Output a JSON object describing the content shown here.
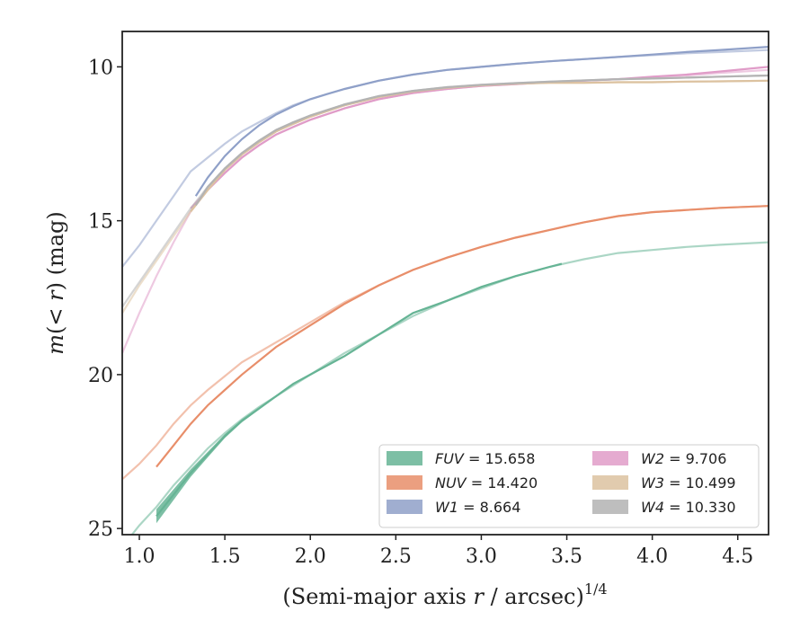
{
  "chart_data": {
    "type": "line",
    "title": "",
    "xlabel": "(Semi-major axis r / arcsec)^1/4",
    "xlabel_parts": {
      "prefix": "(Semi-major axis ",
      "var": "r",
      "middle": " / arcsec)",
      "sup": "1/4"
    },
    "ylabel": "m(< r) (mag)",
    "ylabel_parts": {
      "m": "m",
      "paren_open": "(",
      "lt": "< ",
      "r": "r",
      "paren_close": ")",
      "unit": " (mag)"
    },
    "xlim": [
      0.9,
      4.68
    ],
    "ylim": [
      25.2,
      8.85
    ],
    "y_inverted": true,
    "xticks": [
      1.0,
      1.5,
      2.0,
      2.5,
      3.0,
      3.5,
      4.0,
      4.5
    ],
    "xtick_labels": [
      "1.0",
      "1.5",
      "2.0",
      "2.5",
      "3.0",
      "3.5",
      "4.0",
      "4.5"
    ],
    "yticks": [
      10,
      15,
      20,
      25
    ],
    "ytick_labels": [
      "10",
      "15",
      "20",
      "25"
    ],
    "grid": false,
    "legend_position": "lower-right",
    "legend_columns": 2,
    "series": [
      {
        "name": "FUV = 15.658",
        "label_var": "FUV",
        "label_value": "= 15.658",
        "color": "#66b495",
        "x": [
          1.1,
          1.2,
          1.3,
          1.4,
          1.5,
          1.6,
          1.7,
          1.8,
          1.9,
          2.0,
          2.2,
          2.4,
          2.6,
          2.8,
          3.0,
          3.2,
          3.4,
          3.47
        ],
        "y": [
          24.6,
          23.9,
          23.2,
          22.6,
          22.0,
          21.5,
          21.1,
          20.7,
          20.3,
          20.0,
          19.4,
          18.7,
          18.0,
          17.6,
          17.15,
          16.8,
          16.5,
          16.4
        ],
        "band": [
          0.45,
          0.35,
          0.25,
          0.18,
          0.12,
          0.1,
          0.08,
          0.07,
          0.06,
          0.05,
          0.05,
          0.05,
          0.05,
          0.05,
          0.05,
          0.05,
          0.05,
          0.05
        ],
        "ext_x": [
          0.9,
          1.0,
          1.1,
          1.2,
          1.3,
          1.4,
          1.5,
          1.6,
          1.7,
          1.8,
          2.0,
          2.2,
          2.4,
          2.6,
          2.8,
          3.0,
          3.2,
          3.4,
          3.6,
          3.8,
          4.0,
          4.2,
          4.4,
          4.68
        ],
        "ext_y": [
          25.6,
          24.9,
          24.3,
          23.6,
          23.0,
          22.4,
          21.9,
          21.45,
          21.05,
          20.7,
          20.0,
          19.3,
          18.7,
          18.1,
          17.6,
          17.2,
          16.8,
          16.5,
          16.25,
          16.05,
          15.95,
          15.85,
          15.78,
          15.7
        ]
      },
      {
        "name": "NUV = 14.420",
        "label_var": "NUV",
        "label_value": "= 14.420",
        "color": "#e88e6a",
        "x": [
          1.1,
          1.2,
          1.3,
          1.4,
          1.5,
          1.6,
          1.8,
          2.0,
          2.2,
          2.4,
          2.6,
          2.8,
          3.0,
          3.2,
          3.4,
          3.6,
          3.8,
          4.0,
          4.2,
          4.4,
          4.68
        ],
        "y": [
          23.0,
          22.3,
          21.6,
          21.0,
          20.5,
          20.0,
          19.1,
          18.4,
          17.7,
          17.1,
          16.6,
          16.2,
          15.85,
          15.55,
          15.3,
          15.05,
          14.85,
          14.72,
          14.65,
          14.58,
          14.52
        ],
        "ext_x": [
          0.9,
          1.0,
          1.1,
          1.2,
          1.3,
          1.4,
          1.5,
          1.6,
          1.8,
          2.0,
          2.2,
          2.4,
          2.6,
          2.8,
          3.0,
          3.2,
          3.4,
          3.6,
          3.8,
          4.0,
          4.2,
          4.4,
          4.68
        ],
        "ext_y": [
          23.4,
          22.9,
          22.3,
          21.6,
          21.0,
          20.5,
          20.05,
          19.6,
          18.95,
          18.3,
          17.65,
          17.1,
          16.6,
          16.2,
          15.85,
          15.55,
          15.3,
          15.05,
          14.85,
          14.72,
          14.65,
          14.58,
          14.52
        ]
      },
      {
        "name": "W1 = 8.664",
        "label_var": "W1",
        "label_value": "= 8.664",
        "color": "#8fa0c8",
        "x": [
          1.33,
          1.4,
          1.5,
          1.6,
          1.7,
          1.8,
          1.9,
          2.0,
          2.1,
          2.2,
          2.4,
          2.6,
          2.8,
          3.0,
          3.2,
          3.4,
          3.6,
          3.8,
          4.0,
          4.2,
          4.4,
          4.68
        ],
        "y": [
          14.2,
          13.6,
          12.9,
          12.35,
          11.9,
          11.55,
          11.28,
          11.05,
          10.88,
          10.72,
          10.45,
          10.25,
          10.1,
          10.0,
          9.9,
          9.82,
          9.75,
          9.68,
          9.6,
          9.52,
          9.45,
          9.35
        ],
        "ext_x": [
          0.9,
          1.0,
          1.1,
          1.2,
          1.3,
          1.4,
          1.5,
          1.6,
          1.7,
          1.8,
          1.9,
          2.0,
          2.2,
          2.4,
          2.6,
          2.8,
          3.0,
          3.2,
          3.4,
          3.6,
          3.8,
          4.0,
          4.2,
          4.4,
          4.68
        ],
        "ext_y": [
          16.5,
          15.8,
          15.0,
          14.2,
          13.4,
          12.95,
          12.5,
          12.1,
          11.8,
          11.5,
          11.25,
          11.05,
          10.72,
          10.45,
          10.25,
          10.1,
          10.0,
          9.9,
          9.82,
          9.75,
          9.68,
          9.62,
          9.56,
          9.52,
          9.45
        ]
      },
      {
        "name": "W2 = 9.706",
        "label_var": "W2",
        "label_value": "= 9.706",
        "color": "#e09cc8",
        "x": [
          1.3,
          1.35,
          1.4,
          1.5,
          1.6,
          1.7,
          1.8,
          1.9,
          2.0,
          2.2,
          2.4,
          2.6,
          2.8,
          3.0,
          3.2,
          3.4,
          3.6,
          3.8,
          4.0,
          4.2,
          4.4,
          4.68
        ],
        "y": [
          14.6,
          14.3,
          14.0,
          13.45,
          12.95,
          12.55,
          12.2,
          11.95,
          11.72,
          11.35,
          11.05,
          10.85,
          10.72,
          10.62,
          10.56,
          10.5,
          10.45,
          10.4,
          10.32,
          10.25,
          10.15,
          10.0
        ],
        "ext_x": [
          0.9,
          1.0,
          1.1,
          1.2,
          1.3,
          1.4,
          1.5,
          1.6,
          1.7,
          1.8,
          2.0,
          2.2,
          2.4,
          2.6,
          2.8,
          3.0,
          3.2,
          3.4,
          3.6,
          3.8,
          4.0,
          4.2,
          4.4,
          4.68
        ],
        "ext_y": [
          19.3,
          18.0,
          16.8,
          15.7,
          14.7,
          14.0,
          13.45,
          12.95,
          12.55,
          12.2,
          11.72,
          11.35,
          11.05,
          10.85,
          10.72,
          10.62,
          10.56,
          10.5,
          10.45,
          10.4,
          10.35,
          10.28,
          10.2,
          10.1
        ]
      },
      {
        "name": "W3 = 10.499",
        "label_var": "W3",
        "label_value": "= 10.499",
        "color": "#dcc2a0",
        "x": [
          1.3,
          1.4,
          1.5,
          1.6,
          1.7,
          1.8,
          1.9,
          2.0,
          2.2,
          2.4,
          2.6,
          2.8,
          3.0,
          3.2,
          3.4,
          3.6,
          3.8,
          4.0,
          4.2,
          4.4,
          4.68
        ],
        "y": [
          14.7,
          14.0,
          13.35,
          12.85,
          12.45,
          12.1,
          11.85,
          11.62,
          11.25,
          10.98,
          10.8,
          10.68,
          10.6,
          10.55,
          10.52,
          10.52,
          10.5,
          10.5,
          10.48,
          10.47,
          10.45
        ],
        "ext_x": [
          0.9,
          1.0,
          1.1,
          1.2,
          1.3,
          1.4,
          1.5,
          1.6,
          1.7,
          1.8,
          2.0,
          2.2,
          2.4,
          2.6,
          2.8,
          3.0,
          3.2,
          3.4,
          3.6,
          3.8,
          4.0,
          4.2,
          4.4,
          4.68
        ],
        "ext_y": [
          18.0,
          17.1,
          16.3,
          15.5,
          14.7,
          14.0,
          13.35,
          12.85,
          12.45,
          12.1,
          11.62,
          11.25,
          10.98,
          10.8,
          10.68,
          10.6,
          10.55,
          10.52,
          10.52,
          10.5,
          10.5,
          10.48,
          10.47,
          10.45
        ]
      },
      {
        "name": "W4 = 10.330",
        "label_var": "W4",
        "label_value": "= 10.330",
        "color": "#b3b3b3",
        "x": [
          1.33,
          1.4,
          1.5,
          1.6,
          1.7,
          1.8,
          1.9,
          2.0,
          2.2,
          2.4,
          2.6,
          2.8,
          3.0,
          3.2,
          3.4,
          3.6,
          3.8,
          4.0,
          4.2,
          4.4,
          4.68
        ],
        "y": [
          14.5,
          13.9,
          13.3,
          12.8,
          12.4,
          12.05,
          11.8,
          11.58,
          11.22,
          10.95,
          10.78,
          10.66,
          10.58,
          10.53,
          10.48,
          10.44,
          10.4,
          10.38,
          10.35,
          10.32,
          10.28
        ],
        "ext_x": [
          0.9,
          1.0,
          1.1,
          1.2,
          1.3,
          1.4,
          1.5,
          1.6,
          1.7,
          1.8,
          2.0,
          2.2,
          2.4,
          2.6,
          2.8,
          3.0,
          3.2,
          3.4,
          3.6,
          3.8,
          4.0,
          4.2,
          4.4,
          4.68
        ],
        "ext_y": [
          17.8,
          17.0,
          16.2,
          15.4,
          14.6,
          13.9,
          13.3,
          12.8,
          12.4,
          12.05,
          11.58,
          11.22,
          10.95,
          10.78,
          10.66,
          10.58,
          10.53,
          10.48,
          10.44,
          10.4,
          10.38,
          10.35,
          10.32,
          10.28
        ]
      }
    ]
  }
}
